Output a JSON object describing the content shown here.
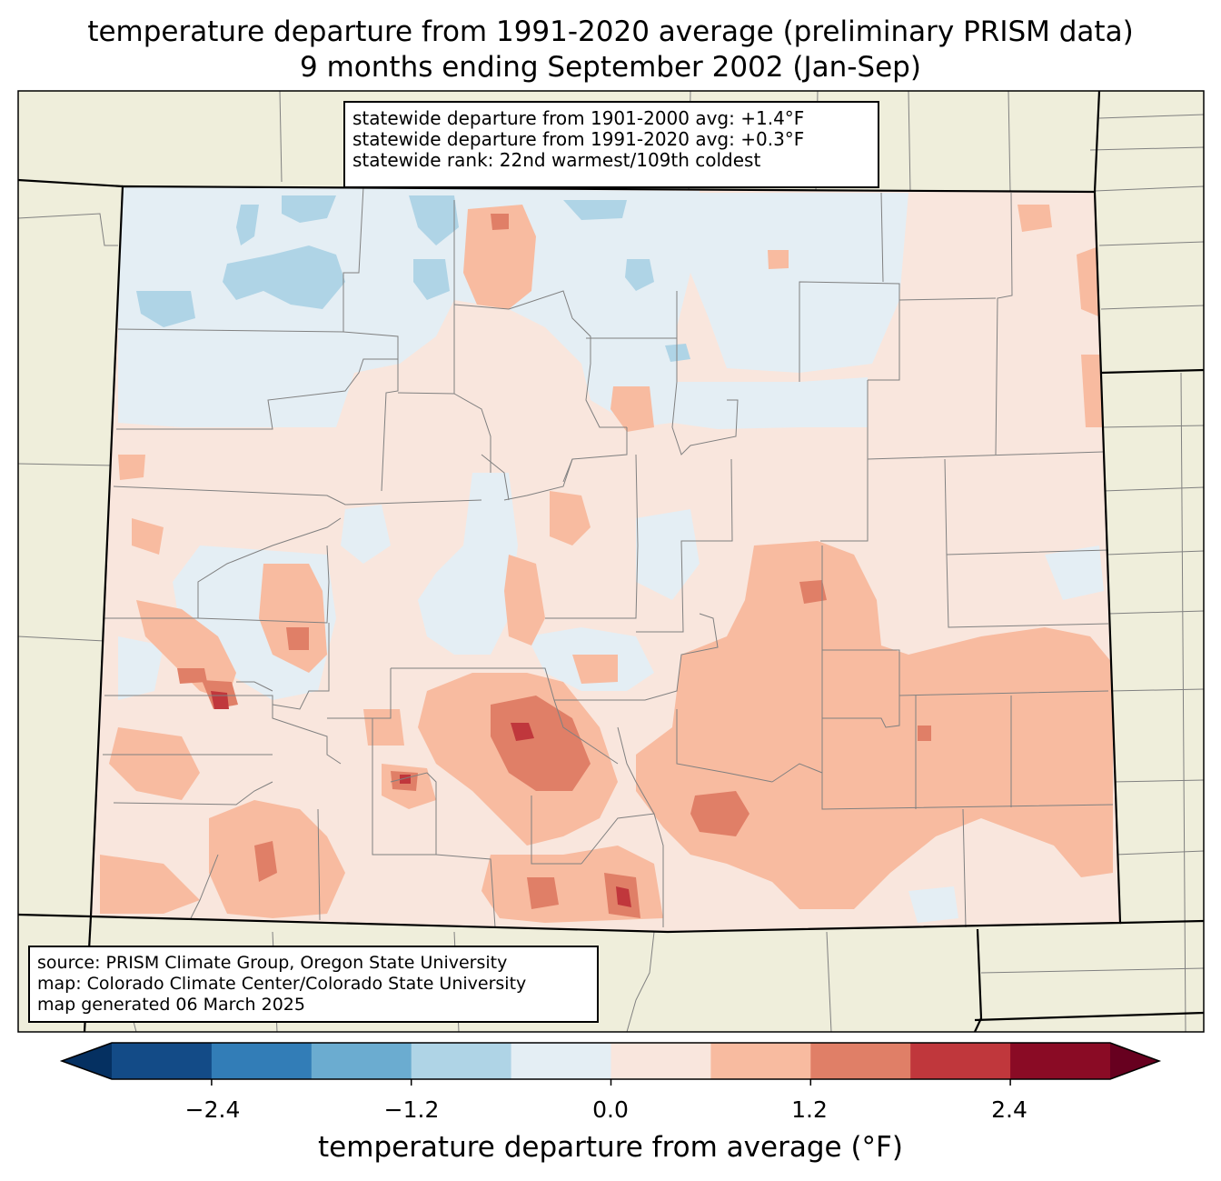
{
  "title": {
    "line1": "temperature departure from 1991-2020 average (preliminary PRISM data)",
    "line2": "9 months ending September 2002 (Jan-Sep)"
  },
  "stats": {
    "line1": "statewide departure from 1901-2000 avg: +1.4°F",
    "line2": "statewide departure from 1991-2020 avg: +0.3°F",
    "line3": "statewide rank: 22nd warmest/109th coldest"
  },
  "source": {
    "line1": "source: PRISM Climate Group, Oregon State University",
    "line2": "map: Colorado Climate Center/Colorado State University",
    "line3": "map generated 06 March 2025"
  },
  "colorbar": {
    "label": "temperature departure from average (°F)",
    "ticks": [
      "−2.4",
      "−1.2",
      "0.0",
      "1.2",
      "2.4"
    ],
    "colors": [
      "#053061",
      "#134b87",
      "#327db7",
      "#6bacd0",
      "#afd4e6",
      "#e4eef4",
      "#f9e6dd",
      "#f8bba0",
      "#e07f67",
      "#c0373c",
      "#8a0b25",
      "#67001f"
    ]
  },
  "colors": {
    "land": "#efeedb",
    "state_border": "#000000",
    "county_border": "#808080"
  }
}
